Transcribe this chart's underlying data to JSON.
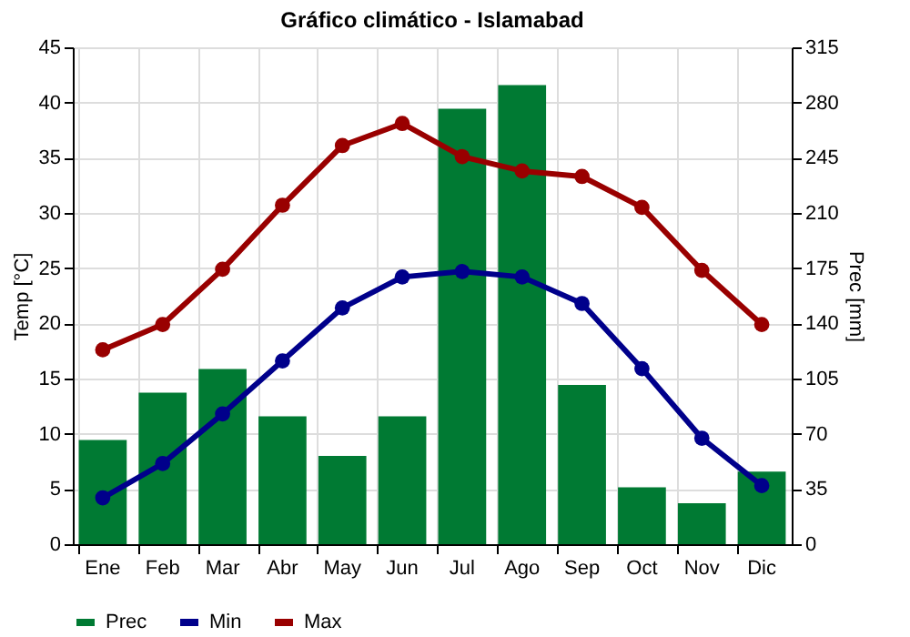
{
  "chart_data": {
    "type": "bar",
    "title": "Gráfico climático - Islamabad",
    "ylabel": "Temp [°C]",
    "y2label": "Prec [mm]",
    "categories": [
      "Ene",
      "Feb",
      "Mar",
      "Abr",
      "May",
      "Jun",
      "Jul",
      "Ago",
      "Sep",
      "Oct",
      "Nov",
      "Dic"
    ],
    "series": [
      {
        "name": "Prec",
        "axis": "y2",
        "color": "#007a33",
        "values": [
          66,
          96,
          111,
          81,
          56,
          81,
          276,
          291,
          101,
          36,
          26,
          46
        ]
      },
      {
        "name": "Min",
        "type": "line",
        "color": "#00008b",
        "values": [
          4.2,
          7.3,
          11.8,
          16.6,
          21.4,
          24.2,
          24.7,
          24.2,
          21.8,
          15.9,
          9.6,
          5.3
        ]
      },
      {
        "name": "Max",
        "type": "line",
        "color": "#990000",
        "values": [
          17.6,
          19.9,
          24.9,
          30.7,
          36.1,
          38.1,
          35.1,
          33.8,
          33.3,
          30.5,
          24.8,
          19.9
        ]
      }
    ],
    "ylim": [
      0,
      45
    ],
    "yticks": [
      0,
      5,
      10,
      15,
      20,
      25,
      30,
      35,
      40,
      45
    ],
    "y2lim": [
      0,
      315
    ],
    "y2ticks": [
      0,
      35,
      70,
      105,
      140,
      175,
      210,
      245,
      280,
      315
    ],
    "grid": true,
    "legend": "bottom left",
    "marker": "circle",
    "line_style": "solid"
  }
}
